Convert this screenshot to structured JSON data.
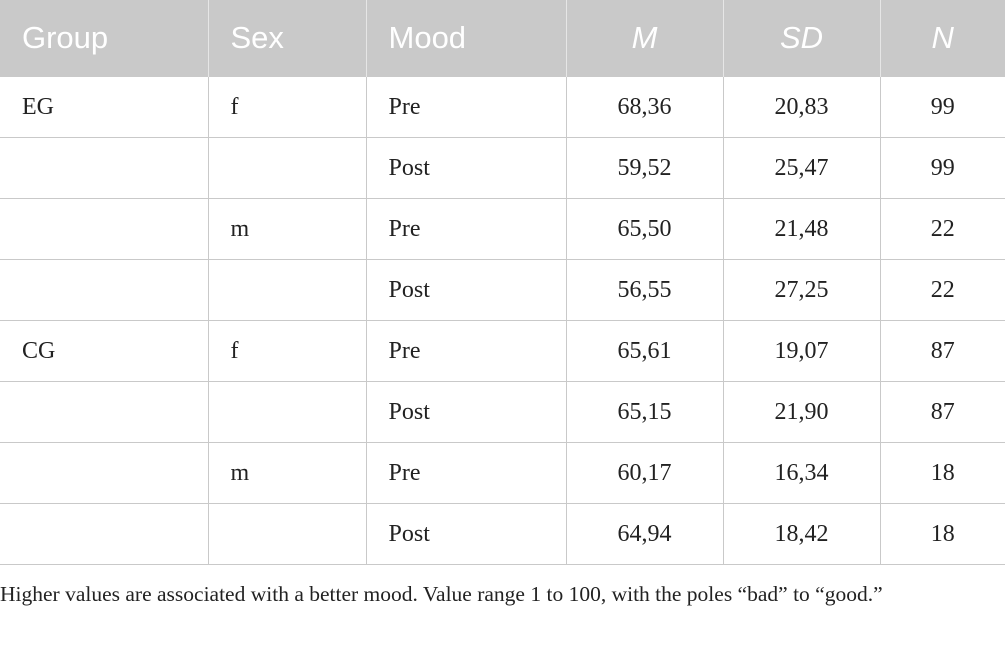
{
  "table": {
    "header": [
      "Group",
      "Sex",
      "Mood",
      "M",
      "SD",
      "N"
    ],
    "rows": [
      [
        "EG",
        "f",
        "Pre",
        "68,36",
        "20,83",
        "99"
      ],
      [
        null,
        null,
        "Post",
        "59,52",
        "25,47",
        "99"
      ],
      [
        null,
        "m",
        "Pre",
        "65,50",
        "21,48",
        "22"
      ],
      [
        null,
        null,
        "Post",
        "56,55",
        "27,25",
        "22"
      ],
      [
        "CG",
        "f",
        "Pre",
        "65,61",
        "19,07",
        "87"
      ],
      [
        null,
        null,
        "Post",
        "65,15",
        "21,90",
        "87"
      ],
      [
        null,
        "m",
        "Pre",
        "60,17",
        "16,34",
        "18"
      ],
      [
        null,
        null,
        "Post",
        "64,94",
        "18,42",
        "18"
      ]
    ]
  },
  "footnote": "Higher values are associated with a better mood. Value range 1 to 100, with the poles “bad” to “good.”"
}
